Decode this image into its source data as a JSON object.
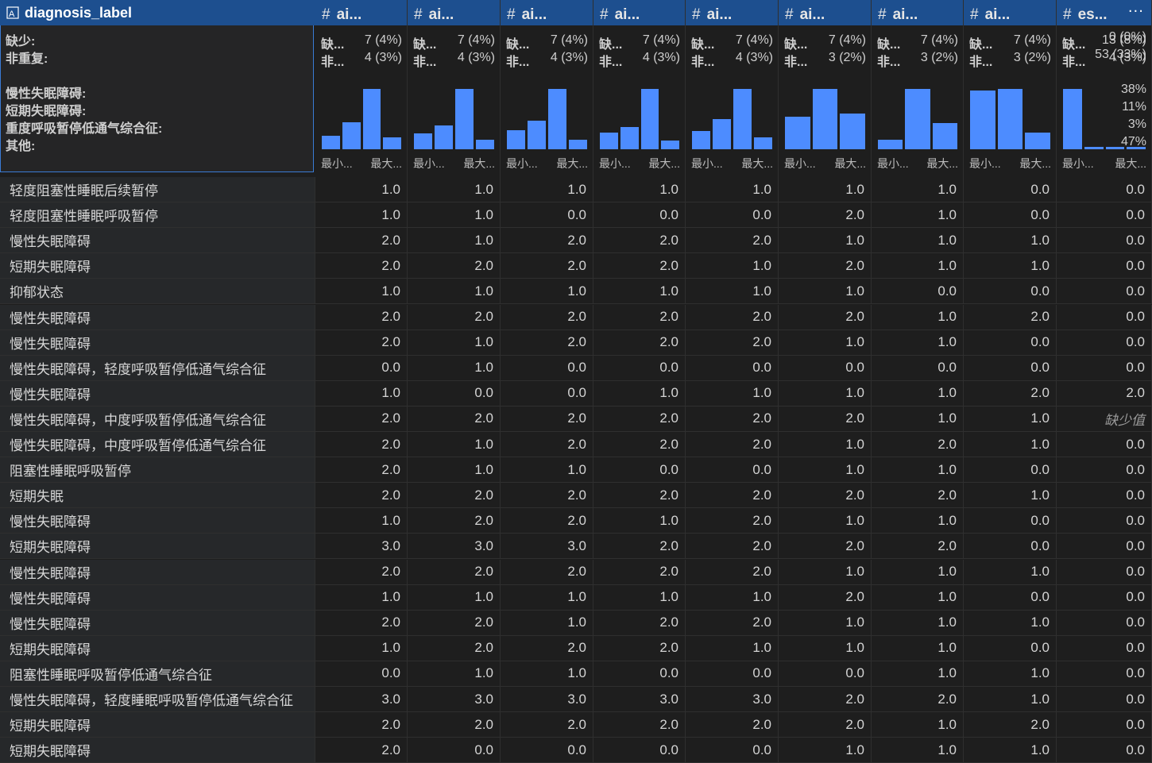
{
  "first_column": {
    "name": "diagnosis_label",
    "more": "···",
    "missing_label": "缺少:",
    "missing_value": "0 (0%)",
    "distinct_label": "非重复:",
    "distinct_value": "53 (33%)",
    "top_values": [
      {
        "label": "慢性失眠障碍:",
        "pct": "38%"
      },
      {
        "label": "短期失眠障碍:",
        "pct": "11%"
      },
      {
        "label": "重度呼吸暂停低通气综合征:",
        "pct": "3%"
      },
      {
        "label": "其他:",
        "pct": "47%"
      }
    ]
  },
  "columns": [
    {
      "title": "ai...",
      "missing_k": "缺...",
      "missing_v": "7 (4%)",
      "distinct_k": "非...",
      "distinct_v": "4 (3%)",
      "hist": [
        0.22,
        0.45,
        1.0,
        0.2
      ],
      "min": "最小...",
      "max": "最大..."
    },
    {
      "title": "ai...",
      "missing_k": "缺...",
      "missing_v": "7 (4%)",
      "distinct_k": "非...",
      "distinct_v": "4 (3%)",
      "hist": [
        0.26,
        0.4,
        1.0,
        0.16
      ],
      "min": "最小...",
      "max": "最大..."
    },
    {
      "title": "ai...",
      "missing_k": "缺...",
      "missing_v": "7 (4%)",
      "distinct_k": "非...",
      "distinct_v": "4 (3%)",
      "hist": [
        0.32,
        0.47,
        1.0,
        0.16
      ],
      "min": "最小...",
      "max": "最大..."
    },
    {
      "title": "ai...",
      "missing_k": "缺...",
      "missing_v": "7 (4%)",
      "distinct_k": "非...",
      "distinct_v": "4 (3%)",
      "hist": [
        0.28,
        0.37,
        1.0,
        0.14
      ],
      "min": "最小...",
      "max": "最大..."
    },
    {
      "title": "ai...",
      "missing_k": "缺...",
      "missing_v": "7 (4%)",
      "distinct_k": "非...",
      "distinct_v": "4 (3%)",
      "hist": [
        0.3,
        0.5,
        1.0,
        0.2
      ],
      "min": "最小...",
      "max": "最大..."
    },
    {
      "title": "ai...",
      "missing_k": "缺...",
      "missing_v": "7 (4%)",
      "distinct_k": "非...",
      "distinct_v": "3 (2%)",
      "hist": [
        0.54,
        1.0,
        0.59
      ],
      "min": "最小...",
      "max": "最大..."
    },
    {
      "title": "ai...",
      "missing_k": "缺...",
      "missing_v": "7 (4%)",
      "distinct_k": "非...",
      "distinct_v": "3 (2%)",
      "hist": [
        0.16,
        1.0,
        0.43
      ],
      "min": "最小...",
      "max": "最大..."
    },
    {
      "title": "ai...",
      "missing_k": "缺...",
      "missing_v": "7 (4%)",
      "distinct_k": "非...",
      "distinct_v": "3 (2%)",
      "hist": [
        0.97,
        1.0,
        0.27
      ],
      "min": "最小...",
      "max": "最大..."
    },
    {
      "title": "es...",
      "missing_k": "缺...",
      "missing_v": "13 (8%)",
      "distinct_k": "非...",
      "distinct_v": "4 (3%)",
      "hist": [
        1.0,
        0.04,
        0.04,
        0.04
      ],
      "min": "最小...",
      "max": "最大..."
    }
  ],
  "rows": [
    {
      "label": "轻度阻塞性睡眠后续暂停",
      "values": [
        "1.0",
        "1.0",
        "1.0",
        "1.0",
        "1.0",
        "1.0",
        "1.0",
        "0.0",
        "0.0"
      ]
    },
    {
      "label": "轻度阻塞性睡眠呼吸暂停",
      "values": [
        "1.0",
        "1.0",
        "0.0",
        "0.0",
        "0.0",
        "2.0",
        "1.0",
        "0.0",
        "0.0"
      ]
    },
    {
      "label": "慢性失眠障碍",
      "values": [
        "2.0",
        "1.0",
        "2.0",
        "2.0",
        "2.0",
        "1.0",
        "1.0",
        "1.0",
        "0.0"
      ]
    },
    {
      "label": "短期失眠障碍",
      "values": [
        "2.0",
        "2.0",
        "2.0",
        "2.0",
        "1.0",
        "2.0",
        "1.0",
        "1.0",
        "0.0"
      ]
    },
    {
      "label": "抑郁状态",
      "values": [
        "1.0",
        "1.0",
        "1.0",
        "1.0",
        "1.0",
        "1.0",
        "0.0",
        "0.0",
        "0.0"
      ]
    },
    {
      "label": "慢性失眠障碍",
      "values": [
        "2.0",
        "2.0",
        "2.0",
        "2.0",
        "2.0",
        "2.0",
        "1.0",
        "2.0",
        "0.0"
      ]
    },
    {
      "label": "慢性失眠障碍",
      "values": [
        "2.0",
        "1.0",
        "2.0",
        "2.0",
        "2.0",
        "1.0",
        "1.0",
        "0.0",
        "0.0"
      ]
    },
    {
      "label": "慢性失眠障碍，轻度呼吸暂停低通气综合征",
      "values": [
        "0.0",
        "1.0",
        "0.0",
        "0.0",
        "0.0",
        "0.0",
        "0.0",
        "0.0",
        "0.0"
      ]
    },
    {
      "label": "慢性失眠障碍",
      "values": [
        "1.0",
        "0.0",
        "0.0",
        "1.0",
        "1.0",
        "1.0",
        "1.0",
        "2.0",
        "2.0"
      ]
    },
    {
      "label": "慢性失眠障碍，中度呼吸暂停低通气综合征",
      "values": [
        "2.0",
        "2.0",
        "2.0",
        "2.0",
        "2.0",
        "2.0",
        "1.0",
        "1.0",
        "缺少值"
      ]
    },
    {
      "label": "慢性失眠障碍，中度呼吸暂停低通气综合征",
      "values": [
        "2.0",
        "1.0",
        "2.0",
        "2.0",
        "2.0",
        "1.0",
        "2.0",
        "1.0",
        "0.0"
      ]
    },
    {
      "label": "阻塞性睡眠呼吸暂停",
      "values": [
        "2.0",
        "1.0",
        "1.0",
        "0.0",
        "0.0",
        "1.0",
        "1.0",
        "0.0",
        "0.0"
      ]
    },
    {
      "label": "短期失眠",
      "values": [
        "2.0",
        "2.0",
        "2.0",
        "2.0",
        "2.0",
        "2.0",
        "2.0",
        "1.0",
        "0.0"
      ]
    },
    {
      "label": "慢性失眠障碍",
      "values": [
        "1.0",
        "2.0",
        "2.0",
        "1.0",
        "2.0",
        "1.0",
        "1.0",
        "0.0",
        "0.0"
      ]
    },
    {
      "label": "短期失眠障碍",
      "values": [
        "3.0",
        "3.0",
        "3.0",
        "2.0",
        "2.0",
        "2.0",
        "2.0",
        "0.0",
        "0.0"
      ]
    },
    {
      "label": "慢性失眠障碍",
      "values": [
        "2.0",
        "2.0",
        "2.0",
        "2.0",
        "2.0",
        "1.0",
        "1.0",
        "1.0",
        "0.0"
      ]
    },
    {
      "label": "慢性失眠障碍",
      "values": [
        "1.0",
        "1.0",
        "1.0",
        "1.0",
        "1.0",
        "2.0",
        "1.0",
        "0.0",
        "0.0"
      ]
    },
    {
      "label": "慢性失眠障碍",
      "values": [
        "2.0",
        "2.0",
        "1.0",
        "2.0",
        "2.0",
        "1.0",
        "1.0",
        "1.0",
        "0.0"
      ]
    },
    {
      "label": "短期失眠障碍",
      "values": [
        "1.0",
        "2.0",
        "2.0",
        "2.0",
        "1.0",
        "1.0",
        "1.0",
        "0.0",
        "0.0"
      ]
    },
    {
      "label": "阻塞性睡眠呼吸暂停低通气综合征",
      "values": [
        "0.0",
        "1.0",
        "1.0",
        "0.0",
        "0.0",
        "0.0",
        "1.0",
        "1.0",
        "0.0"
      ]
    },
    {
      "label": "慢性失眠障碍，轻度睡眠呼吸暂停低通气综合征",
      "values": [
        "3.0",
        "3.0",
        "3.0",
        "3.0",
        "3.0",
        "2.0",
        "2.0",
        "1.0",
        "0.0"
      ]
    },
    {
      "label": "短期失眠障碍",
      "values": [
        "2.0",
        "2.0",
        "2.0",
        "2.0",
        "2.0",
        "2.0",
        "1.0",
        "2.0",
        "0.0"
      ]
    },
    {
      "label": "短期失眠障碍",
      "values": [
        "2.0",
        "0.0",
        "0.0",
        "0.0",
        "0.0",
        "1.0",
        "1.0",
        "1.0",
        "0.0"
      ]
    }
  ],
  "missing_marker": "缺少值",
  "colors": {
    "accent": "#4d8cff",
    "selected_header": "#1d4f8f",
    "header_border": "#3a7bd5"
  }
}
